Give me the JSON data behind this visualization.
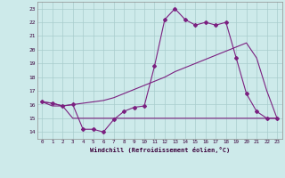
{
  "x": [
    0,
    1,
    2,
    3,
    4,
    5,
    6,
    7,
    8,
    9,
    10,
    11,
    12,
    13,
    14,
    15,
    16,
    17,
    18,
    19,
    20,
    21,
    22,
    23
  ],
  "main_line": [
    16.2,
    16.1,
    15.9,
    16.0,
    14.2,
    14.2,
    14.0,
    14.9,
    15.5,
    15.8,
    15.9,
    18.8,
    22.2,
    23.0,
    22.2,
    21.8,
    22.0,
    21.8,
    22.0,
    19.4,
    16.8,
    15.5,
    15.0,
    15.0
  ],
  "flat_line": [
    16.2,
    15.9,
    15.9,
    15.0,
    15.0,
    15.0,
    15.0,
    15.0,
    15.0,
    15.0,
    15.0,
    15.0,
    15.0,
    15.0,
    15.0,
    15.0,
    15.0,
    15.0,
    15.0,
    15.0,
    15.0,
    15.0,
    15.0,
    15.0
  ],
  "trend_line": [
    16.2,
    16.1,
    15.9,
    16.0,
    16.1,
    16.2,
    16.3,
    16.5,
    16.8,
    17.1,
    17.4,
    17.7,
    18.0,
    18.4,
    18.7,
    19.0,
    19.3,
    19.6,
    19.9,
    20.2,
    20.5,
    19.4,
    17.0,
    15.0
  ],
  "line_color": "#7b2080",
  "bg_color": "#cdeaea",
  "grid_color": "#a8cccc",
  "xlabel": "Windchill (Refroidissement éolien,°C)",
  "ylim": [
    13.5,
    23.5
  ],
  "xlim": [
    -0.5,
    23.5
  ],
  "yticks": [
    14,
    15,
    16,
    17,
    18,
    19,
    20,
    21,
    22,
    23
  ],
  "xticks": [
    0,
    1,
    2,
    3,
    4,
    5,
    6,
    7,
    8,
    9,
    10,
    11,
    12,
    13,
    14,
    15,
    16,
    17,
    18,
    19,
    20,
    21,
    22,
    23
  ]
}
